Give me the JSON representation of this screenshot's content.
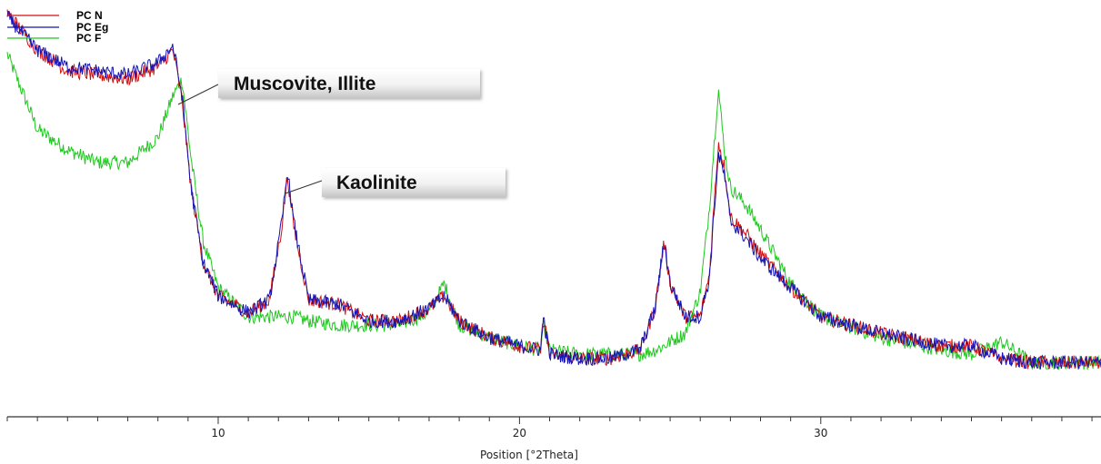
{
  "chart_data": {
    "type": "line",
    "xlabel": "Position [°2Theta]",
    "xlim": [
      3,
      39.3
    ],
    "ylim": [
      0,
      100
    ],
    "x_ticks": [
      10,
      20,
      30
    ],
    "grid": false,
    "legend_position": "top-left",
    "series": [
      {
        "name": "PC N",
        "color": "#d01010",
        "x": [
          3,
          4,
          5,
          6,
          7,
          8,
          8.5,
          8.8,
          9.1,
          9.5,
          10,
          11,
          11.7,
          12.1,
          12.3,
          12.5,
          13,
          14,
          15,
          16,
          17,
          17.5,
          18,
          19,
          20,
          20.7,
          20.8,
          21,
          22,
          23,
          24,
          24.5,
          24.8,
          25,
          25.5,
          26,
          26.3,
          26.6,
          26.8,
          27,
          27.5,
          28,
          29,
          30,
          32,
          34,
          35,
          36,
          37,
          38,
          39.3
        ],
        "y": [
          97,
          88,
          83,
          82,
          81,
          84,
          88,
          76,
          55,
          37,
          29,
          25,
          28,
          45,
          58,
          46,
          28,
          27,
          23,
          23,
          26,
          29,
          23,
          19,
          17,
          16,
          24,
          15,
          14,
          14,
          16,
          26,
          42,
          32,
          24,
          24,
          34,
          66,
          60,
          48,
          44,
          39,
          31,
          24,
          20,
          17,
          17,
          14,
          13,
          13,
          13
        ]
      },
      {
        "name": "PC Eg",
        "color": "#1414b4",
        "x": [
          3,
          4,
          5,
          6,
          7,
          8,
          8.5,
          8.8,
          9.1,
          9.5,
          10,
          11,
          11.7,
          12.1,
          12.3,
          12.5,
          13,
          14,
          15,
          16,
          17,
          17.5,
          18,
          19,
          20,
          20.7,
          20.8,
          21,
          22,
          23,
          24,
          24.5,
          24.8,
          25,
          25.5,
          26,
          26.3,
          26.6,
          26.8,
          27,
          27.5,
          28,
          29,
          30,
          32,
          34,
          35,
          36,
          37,
          38,
          39.3
        ],
        "y": [
          96,
          88,
          84,
          83,
          82,
          85,
          89,
          77,
          55,
          37,
          29,
          25,
          28,
          46,
          59,
          47,
          28,
          27,
          23,
          23,
          26,
          29,
          23,
          19,
          17,
          16,
          24,
          15,
          14,
          14,
          16,
          26,
          42,
          32,
          24,
          24,
          33,
          63,
          58,
          47,
          43,
          38,
          31,
          24,
          20,
          17,
          17,
          14,
          13,
          13,
          13
        ]
      },
      {
        "name": "PC F",
        "color": "#1ec81e",
        "x": [
          3,
          4,
          5,
          6,
          7,
          8,
          8.5,
          8.8,
          9.1,
          9.5,
          10,
          11,
          11.7,
          12.1,
          12.3,
          12.5,
          13,
          14,
          15,
          16,
          17,
          17.5,
          18,
          19,
          20,
          20.7,
          20.8,
          21,
          22,
          23,
          24,
          24.5,
          24.8,
          25,
          25.5,
          26,
          26.3,
          26.6,
          26.8,
          27,
          27.5,
          28,
          29,
          30,
          32,
          34,
          35,
          36,
          37,
          38,
          39.3
        ],
        "y": [
          87,
          69,
          64,
          61,
          61,
          67,
          77,
          81,
          62,
          42,
          31,
          24,
          24,
          24,
          24,
          24,
          23,
          22,
          22,
          22,
          25,
          32,
          22,
          19,
          17,
          16,
          22,
          16,
          15,
          15,
          15,
          16,
          17,
          18,
          20,
          30,
          50,
          79,
          64,
          55,
          51,
          45,
          32,
          24,
          19,
          16,
          15,
          18,
          13,
          13,
          13
        ]
      }
    ],
    "annotations": [
      {
        "text": "Muscovite, Illite",
        "x": 8.8
      },
      {
        "text": "Kaolinite",
        "x": 12.3
      }
    ]
  }
}
